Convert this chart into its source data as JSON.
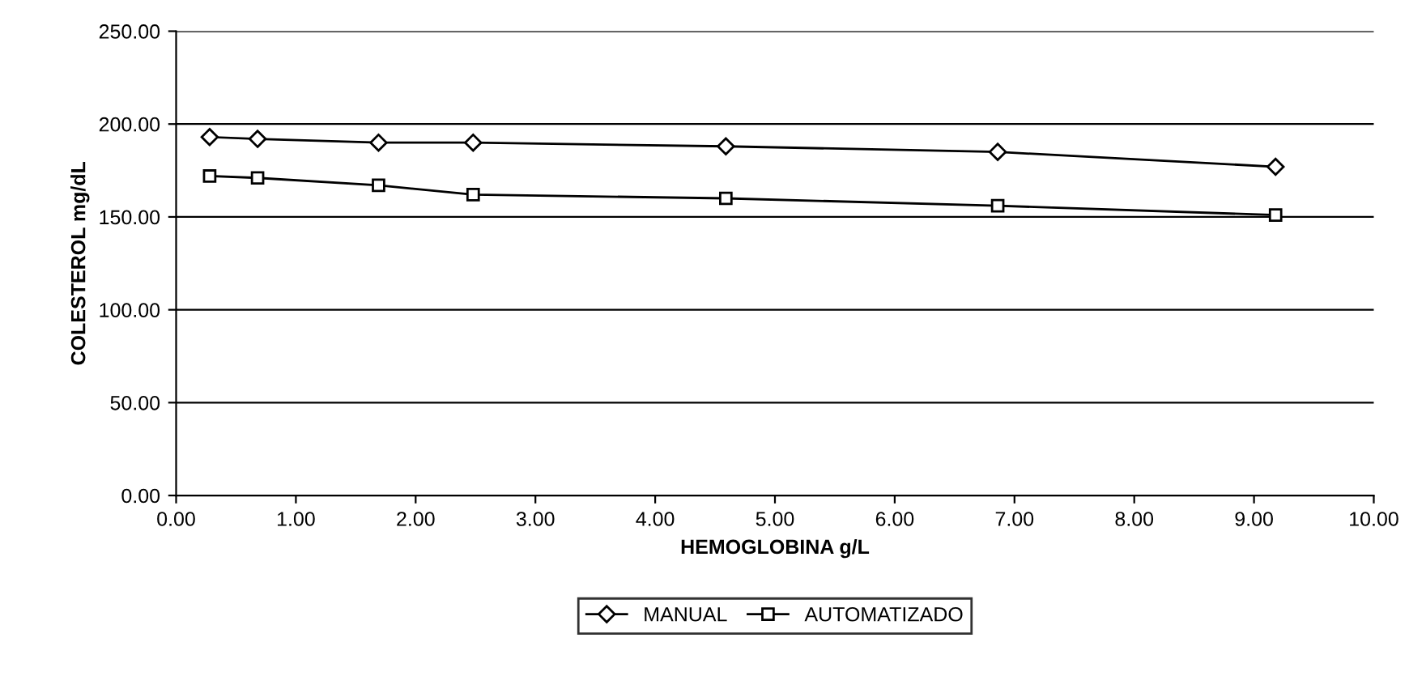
{
  "chart_data": {
    "type": "line",
    "xlabel": "HEMOGLOBINA g/L",
    "ylabel": "COLESTEROL mg/dL",
    "x": [
      0.28,
      0.68,
      1.69,
      2.48,
      4.59,
      6.86,
      9.18
    ],
    "series": [
      {
        "name": "MANUAL",
        "color": "#000000",
        "marker": "diamond",
        "values": [
          193,
          192,
          190,
          190,
          188,
          185,
          177
        ]
      },
      {
        "name": "AUTOMATIZADO",
        "color": "#000000",
        "marker": "square",
        "values": [
          172,
          171,
          167,
          162,
          160,
          156,
          151
        ]
      }
    ],
    "xlim": [
      0,
      10
    ],
    "xticks": [
      {
        "value": 0,
        "label": "0.00"
      },
      {
        "value": 1,
        "label": "1.00"
      },
      {
        "value": 2,
        "label": "2.00"
      },
      {
        "value": 3,
        "label": "3.00"
      },
      {
        "value": 4,
        "label": "4.00"
      },
      {
        "value": 5,
        "label": "5.00"
      },
      {
        "value": 6,
        "label": "6.00"
      },
      {
        "value": 7,
        "label": "7.00"
      },
      {
        "value": 8,
        "label": "8.00"
      },
      {
        "value": 9,
        "label": "9.00"
      },
      {
        "value": 10,
        "label": "10.00"
      }
    ],
    "ylim": [
      0,
      250
    ],
    "yticks": [
      {
        "value": 0,
        "label": "0.00"
      },
      {
        "value": 50,
        "label": "50.00"
      },
      {
        "value": 100,
        "label": "100.00"
      },
      {
        "value": 150,
        "label": "150.00"
      },
      {
        "value": 200,
        "label": "200.00"
      },
      {
        "value": 250,
        "label": "250.00"
      }
    ],
    "grid": "y",
    "legend": "bottom",
    "line_style": "solid"
  }
}
